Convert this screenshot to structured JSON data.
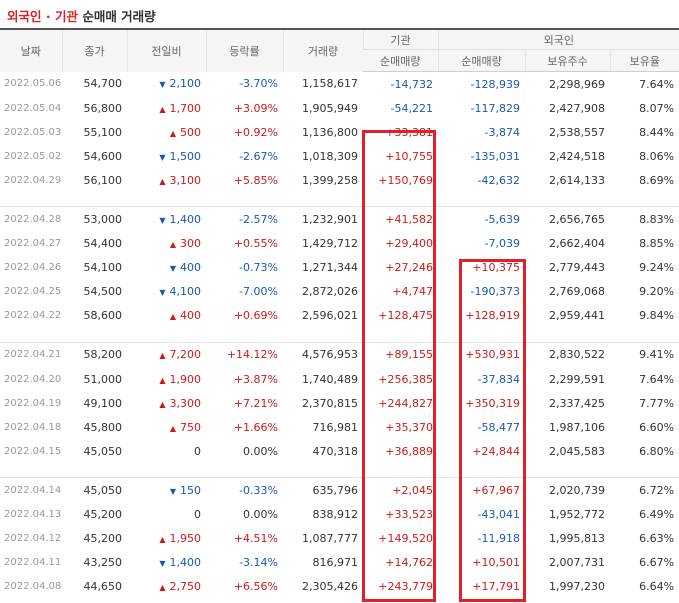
{
  "title": {
    "part1": "외국인 · 기관",
    "part2": "순매매 거래량"
  },
  "headers": {
    "date": "날짜",
    "close": "종가",
    "change": "전일비",
    "rate": "등락률",
    "volume": "거래량",
    "institution": "기관",
    "foreign": "외국인",
    "inst_net": "순매매량",
    "foreign_net": "순매매량",
    "holdings": "보유주수",
    "ratio": "보유율"
  },
  "colors": {
    "up": "#cc1a1a",
    "down": "#1a58b0",
    "highlight_box": "#e0212b"
  },
  "icons": {
    "up": "up-triangle-icon",
    "down": "down-triangle-icon"
  },
  "groups": [
    [
      {
        "date": "2022.05.06",
        "close": "54,700",
        "dir": "down",
        "change": "2,100",
        "rate": "-3.70%",
        "volume": "1,158,617",
        "inst": "-14,732",
        "foreign": "-128,939",
        "holdings": "2,298,969",
        "ratio": "7.64%"
      },
      {
        "date": "2022.05.04",
        "close": "56,800",
        "dir": "up",
        "change": "1,700",
        "rate": "+3.09%",
        "volume": "1,905,949",
        "inst": "-54,221",
        "foreign": "-117,829",
        "holdings": "2,427,908",
        "ratio": "8.07%"
      },
      {
        "date": "2022.05.03",
        "close": "55,100",
        "dir": "up",
        "change": "500",
        "rate": "+0.92%",
        "volume": "1,136,800",
        "inst": "+33,381",
        "foreign": "-3,874",
        "holdings": "2,538,557",
        "ratio": "8.44%"
      },
      {
        "date": "2022.05.02",
        "close": "54,600",
        "dir": "down",
        "change": "1,500",
        "rate": "-2.67%",
        "volume": "1,018,309",
        "inst": "+10,755",
        "foreign": "-135,031",
        "holdings": "2,424,518",
        "ratio": "8.06%"
      },
      {
        "date": "2022.04.29",
        "close": "56,100",
        "dir": "up",
        "change": "3,100",
        "rate": "+5.85%",
        "volume": "1,399,258",
        "inst": "+150,769",
        "foreign": "-42,632",
        "holdings": "2,614,133",
        "ratio": "8.69%"
      }
    ],
    [
      {
        "date": "2022.04.28",
        "close": "53,000",
        "dir": "down",
        "change": "1,400",
        "rate": "-2.57%",
        "volume": "1,232,901",
        "inst": "+41,582",
        "foreign": "-5,639",
        "holdings": "2,656,765",
        "ratio": "8.83%"
      },
      {
        "date": "2022.04.27",
        "close": "54,400",
        "dir": "up",
        "change": "300",
        "rate": "+0.55%",
        "volume": "1,429,712",
        "inst": "+29,400",
        "foreign": "-7,039",
        "holdings": "2,662,404",
        "ratio": "8.85%"
      },
      {
        "date": "2022.04.26",
        "close": "54,100",
        "dir": "down",
        "change": "400",
        "rate": "-0.73%",
        "volume": "1,271,344",
        "inst": "+27,246",
        "foreign": "+10,375",
        "holdings": "2,779,443",
        "ratio": "9.24%"
      },
      {
        "date": "2022.04.25",
        "close": "54,500",
        "dir": "down",
        "change": "4,100",
        "rate": "-7.00%",
        "volume": "2,872,026",
        "inst": "+4,747",
        "foreign": "-190,373",
        "holdings": "2,769,068",
        "ratio": "9.20%"
      },
      {
        "date": "2022.04.22",
        "close": "58,600",
        "dir": "up",
        "change": "400",
        "rate": "+0.69%",
        "volume": "2,596,021",
        "inst": "+128,475",
        "foreign": "+128,919",
        "holdings": "2,959,441",
        "ratio": "9.84%"
      }
    ],
    [
      {
        "date": "2022.04.21",
        "close": "58,200",
        "dir": "up",
        "change": "7,200",
        "rate": "+14.12%",
        "volume": "4,576,953",
        "inst": "+89,155",
        "foreign": "+530,931",
        "holdings": "2,830,522",
        "ratio": "9.41%"
      },
      {
        "date": "2022.04.20",
        "close": "51,000",
        "dir": "up",
        "change": "1,900",
        "rate": "+3.87%",
        "volume": "1,740,489",
        "inst": "+256,385",
        "foreign": "-37,834",
        "holdings": "2,299,591",
        "ratio": "7.64%"
      },
      {
        "date": "2022.04.19",
        "close": "49,100",
        "dir": "up",
        "change": "3,300",
        "rate": "+7.21%",
        "volume": "2,370,815",
        "inst": "+244,827",
        "foreign": "+350,319",
        "holdings": "2,337,425",
        "ratio": "7.77%"
      },
      {
        "date": "2022.04.18",
        "close": "45,800",
        "dir": "up",
        "change": "750",
        "rate": "+1.66%",
        "volume": "716,981",
        "inst": "+35,370",
        "foreign": "-58,477",
        "holdings": "1,987,106",
        "ratio": "6.60%"
      },
      {
        "date": "2022.04.15",
        "close": "45,050",
        "dir": "none",
        "change": "0",
        "rate": "0.00%",
        "volume": "470,318",
        "inst": "+36,889",
        "foreign": "+24,844",
        "holdings": "2,045,583",
        "ratio": "6.80%"
      }
    ],
    [
      {
        "date": "2022.04.14",
        "close": "45,050",
        "dir": "down",
        "change": "150",
        "rate": "-0.33%",
        "volume": "635,796",
        "inst": "+2,045",
        "foreign": "+67,967",
        "holdings": "2,020,739",
        "ratio": "6.72%"
      },
      {
        "date": "2022.04.13",
        "close": "45,200",
        "dir": "none",
        "change": "0",
        "rate": "0.00%",
        "volume": "838,912",
        "inst": "+33,523",
        "foreign": "-43,041",
        "holdings": "1,952,772",
        "ratio": "6.49%"
      },
      {
        "date": "2022.04.12",
        "close": "45,200",
        "dir": "up",
        "change": "1,950",
        "rate": "+4.51%",
        "volume": "1,087,777",
        "inst": "+149,520",
        "foreign": "-11,918",
        "holdings": "1,995,813",
        "ratio": "6.63%"
      },
      {
        "date": "2022.04.11",
        "close": "43,250",
        "dir": "down",
        "change": "1,400",
        "rate": "-3.14%",
        "volume": "816,971",
        "inst": "+14,762",
        "foreign": "+10,501",
        "holdings": "2,007,731",
        "ratio": "6.67%"
      },
      {
        "date": "2022.04.08",
        "close": "44,650",
        "dir": "up",
        "change": "2,750",
        "rate": "+6.56%",
        "volume": "2,305,426",
        "inst": "+243,779",
        "foreign": "+17,791",
        "holdings": "1,997,230",
        "ratio": "6.64%"
      }
    ]
  ]
}
